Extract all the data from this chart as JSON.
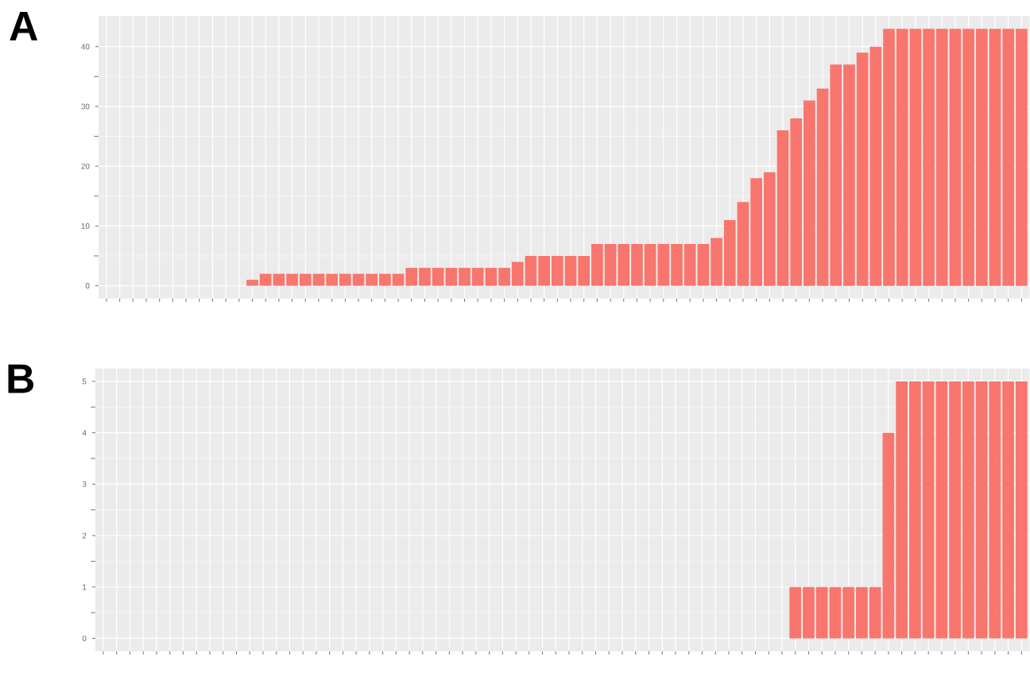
{
  "chart_data": [
    {
      "type": "bar",
      "title": "A",
      "color": "#f8766d",
      "grid": true,
      "ylim": [
        -2.15,
        45.15
      ],
      "yticks": [
        0,
        10,
        20,
        30,
        40
      ],
      "categories": [
        null,
        null,
        null,
        null,
        null,
        null,
        null,
        null,
        null,
        null,
        null,
        null,
        null,
        null,
        null,
        null,
        null,
        null,
        null,
        null,
        null,
        null,
        null,
        null,
        null,
        null,
        null,
        null,
        null,
        null,
        null,
        null,
        null,
        null,
        null,
        null,
        null,
        null,
        null,
        null,
        null,
        null,
        null,
        null,
        null,
        null,
        null,
        null,
        null,
        null,
        null,
        null,
        null,
        null,
        null,
        null,
        null,
        null,
        null,
        null,
        null,
        null,
        null,
        null,
        null,
        null,
        null,
        null,
        null,
        null
      ],
      "values": [
        0,
        0,
        0,
        0,
        0,
        0,
        0,
        0,
        0,
        0,
        0,
        1,
        2,
        2,
        2,
        2,
        2,
        2,
        2,
        2,
        2,
        2,
        2,
        3,
        3,
        3,
        3,
        3,
        3,
        3,
        3,
        4,
        5,
        5,
        5,
        5,
        5,
        7,
        7,
        7,
        7,
        7,
        7,
        7,
        7,
        7,
        8,
        11,
        14,
        18,
        19,
        26,
        28,
        31,
        33,
        37,
        37,
        39,
        40,
        43,
        43,
        43,
        43,
        43,
        43,
        43,
        43,
        43,
        43,
        43
      ]
    },
    {
      "type": "bar",
      "title": "B",
      "color": "#f8766d",
      "grid": true,
      "ylim": [
        -0.25,
        5.25
      ],
      "yticks": [
        0,
        1,
        2,
        3,
        4,
        5
      ],
      "categories": [
        null,
        null,
        null,
        null,
        null,
        null,
        null,
        null,
        null,
        null,
        null,
        null,
        null,
        null,
        null,
        null,
        null,
        null,
        null,
        null,
        null,
        null,
        null,
        null,
        null,
        null,
        null,
        null,
        null,
        null,
        null,
        null,
        null,
        null,
        null,
        null,
        null,
        null,
        null,
        null,
        null,
        null,
        null,
        null,
        null,
        null,
        null,
        null,
        null,
        null,
        null,
        null,
        null,
        null,
        null,
        null,
        null,
        null,
        null,
        null,
        null,
        null,
        null,
        null,
        null,
        null,
        null,
        null,
        null,
        null
      ],
      "values": [
        0,
        0,
        0,
        0,
        0,
        0,
        0,
        0,
        0,
        0,
        0,
        0,
        0,
        0,
        0,
        0,
        0,
        0,
        0,
        0,
        0,
        0,
        0,
        0,
        0,
        0,
        0,
        0,
        0,
        0,
        0,
        0,
        0,
        0,
        0,
        0,
        0,
        0,
        0,
        0,
        0,
        0,
        0,
        0,
        0,
        0,
        0,
        0,
        0,
        0,
        0,
        0,
        1,
        1,
        1,
        1,
        1,
        1,
        1,
        4,
        5,
        5,
        5,
        5,
        5,
        5,
        5,
        5,
        5,
        5
      ]
    }
  ]
}
